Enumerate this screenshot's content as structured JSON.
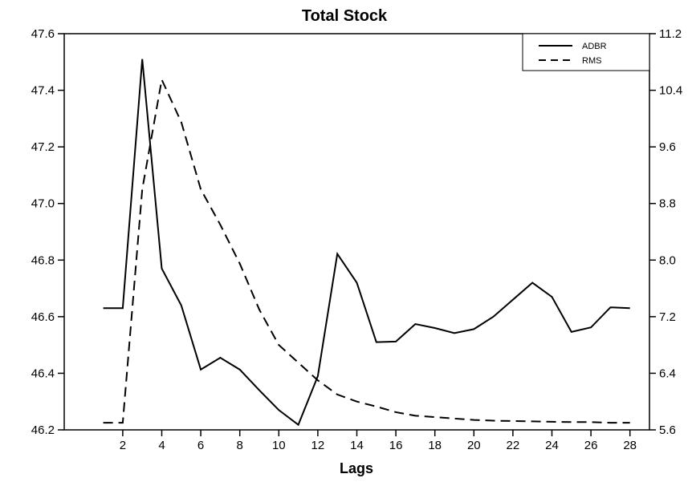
{
  "chart_data": {
    "type": "line",
    "title": "Total Stock",
    "xlabel": "Lags",
    "ylabel": "",
    "y2label": "",
    "x": [
      1,
      2,
      3,
      4,
      5,
      6,
      7,
      8,
      9,
      10,
      11,
      12,
      13,
      14,
      15,
      16,
      17,
      18,
      19,
      20,
      21,
      22,
      23,
      24,
      25,
      26,
      27,
      28
    ],
    "xlim": [
      -1,
      29
    ],
    "xticks": [
      2,
      4,
      6,
      8,
      10,
      12,
      14,
      16,
      18,
      20,
      22,
      24,
      26,
      28
    ],
    "ylim": [
      46.2,
      47.6
    ],
    "yticks": [
      "46.2",
      "46.4",
      "46.6",
      "46.8",
      "47.0",
      "47.2",
      "47.4",
      "47.6"
    ],
    "y2lim": [
      5.6,
      11.2
    ],
    "y2ticks": [
      "5.6",
      "6.4",
      "7.2",
      "8.0",
      "8.8",
      "9.6",
      "10.4",
      "11.2"
    ],
    "grid": false,
    "legend_position": "top-right",
    "series": [
      {
        "name": "ADBR",
        "axis": "left",
        "style": "solid",
        "values": [
          46.63,
          46.63,
          47.51,
          46.77,
          46.64,
          46.413,
          46.455,
          46.413,
          46.34,
          46.27,
          46.218,
          46.39,
          46.822,
          46.72,
          46.51,
          46.512,
          46.574,
          46.56,
          46.542,
          46.556,
          46.6,
          46.66,
          46.72,
          46.67,
          46.546,
          46.562,
          46.633,
          46.63
        ]
      },
      {
        "name": "RMS",
        "axis": "right",
        "style": "dashed",
        "values": [
          5.7,
          5.7,
          9.0,
          10.55,
          9.95,
          9.0,
          8.5,
          7.95,
          7.3,
          6.8,
          6.55,
          6.3,
          6.1,
          6.0,
          5.93,
          5.85,
          5.8,
          5.78,
          5.76,
          5.74,
          5.73,
          5.725,
          5.72,
          5.715,
          5.71,
          5.71,
          5.7,
          5.7
        ]
      }
    ]
  }
}
